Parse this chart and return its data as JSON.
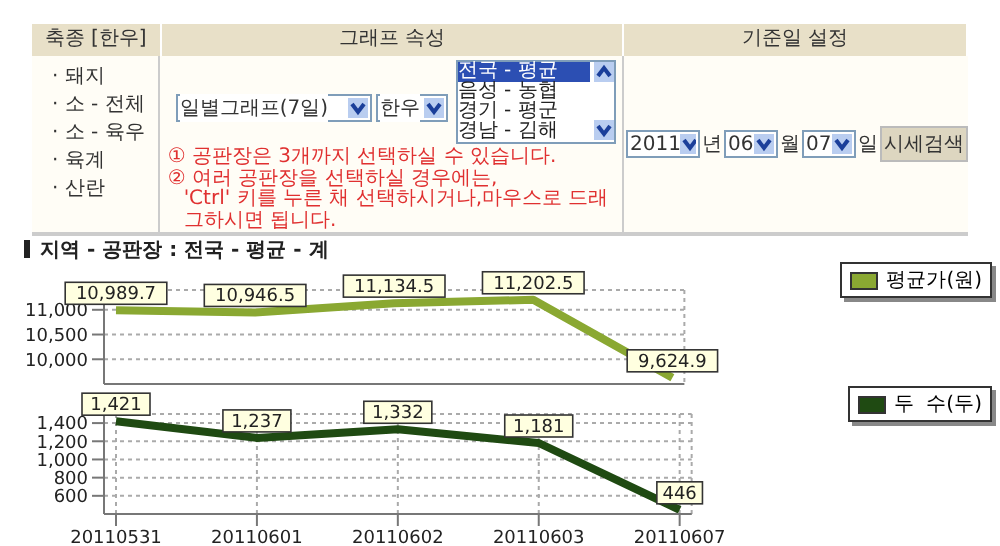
{
  "chart_data": [
    {
      "type": "other",
      "annotations": [
        "축종 [한우]",
        "그래프 속성",
        "기준일 설정",
        "· 돼지",
        "· 소 - 전체",
        "· 소 - 육우",
        "· 육계",
        "· 산란",
        "일별그래프(7일)",
        "한우",
        "전국 - 평균",
        "음성 - 농협",
        "경기 - 평군",
        "경남 - 김해",
        "① 공판장은 3개까지 선택하실 수 있습니다.",
        "② 여러 공판장을 선택하실 경우에는,",
        "'Ctrl' 키를 누른 채 선택하시거나,마우스로 드래그하시면 됩니다.",
        "2011",
        "년",
        "06",
        "월",
        "07",
        "일",
        "시세검색"
      ]
    },
    {
      "type": "line",
      "title": "지역 - 공판장 : 전국 - 평균 - 계",
      "categories": [
        "20110531",
        "20110601",
        "20110602",
        "20110603",
        "20110607"
      ],
      "ylim": [
        9500,
        11400
      ],
      "yticks": [
        {
          "value": 10000,
          "label": "10,000"
        },
        {
          "value": 10500,
          "label": "10,500"
        },
        {
          "value": 11000,
          "label": "11,000"
        }
      ],
      "tick_labels": "y",
      "grid": true,
      "legend": "top right",
      "marker": "none",
      "series": [
        {
          "name": "평균가(원)",
          "color": "#8aa832",
          "values": [
            10989.7,
            10946.5,
            11134.5,
            11202.5,
            9624.9
          ],
          "value_labels": [
            "10,989.7",
            "10,946.5",
            "11,134.5",
            "11,202.5",
            "9,624.9"
          ]
        }
      ]
    },
    {
      "type": "line",
      "categories": [
        "20110531",
        "20110601",
        "20110602",
        "20110603",
        "20110607"
      ],
      "ylim": [
        400,
        1500
      ],
      "yticks": [
        600,
        800,
        {
          "value": 1000,
          "label": "1,000"
        },
        {
          "value": 1200,
          "label": "1,200"
        },
        {
          "value": 1400,
          "label": "1,400"
        }
      ],
      "grid": true,
      "legend": "top right",
      "marker": "none",
      "series": [
        {
          "name": "두  수(두)",
          "color": "#1f4a12",
          "values": [
            1421,
            1237,
            1332,
            1181,
            446
          ],
          "value_labels": [
            "1,421",
            "1,237",
            "1,332",
            "1,181",
            "446"
          ]
        }
      ]
    }
  ]
}
